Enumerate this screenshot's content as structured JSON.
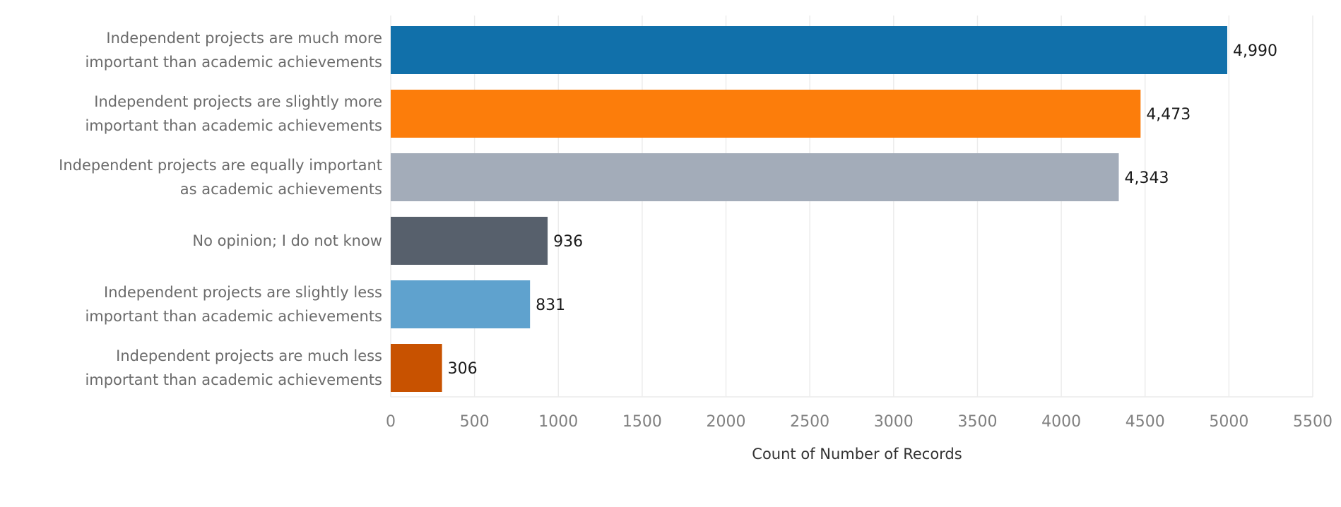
{
  "chart_data": {
    "type": "bar",
    "orientation": "horizontal",
    "categories": [
      [
        "Independent projects are much more",
        "important than academic achievements"
      ],
      [
        "Independent projects are slightly more",
        "important than academic achievements"
      ],
      [
        "Independent projects are equally important",
        "as academic achievements"
      ],
      [
        "No opinion; I do not know"
      ],
      [
        "Independent projects are slightly less",
        "important than academic achievements"
      ],
      [
        "Independent projects are much less",
        "important than academic achievements"
      ]
    ],
    "values": [
      4990,
      4473,
      4343,
      936,
      831,
      306
    ],
    "value_labels": [
      "4,990",
      "4,473",
      "4,343",
      "936",
      "831",
      "306"
    ],
    "colors": [
      "#1170aa",
      "#fc7d0b",
      "#a3acb9",
      "#57606c",
      "#5fa2ce",
      "#c85200"
    ],
    "xlabel": "Count of Number of Records",
    "ylabel": "",
    "title": "",
    "xlim": [
      0,
      5500
    ],
    "xticks": [
      0,
      500,
      1000,
      1500,
      2000,
      2500,
      3000,
      3500,
      4000,
      4500,
      5000,
      5500
    ],
    "xtick_labels": [
      "0",
      "500",
      "1000",
      "1500",
      "2000",
      "2500",
      "3000",
      "3500",
      "4000",
      "4500",
      "5000",
      "5500"
    ],
    "grid": true,
    "legend": "none"
  }
}
